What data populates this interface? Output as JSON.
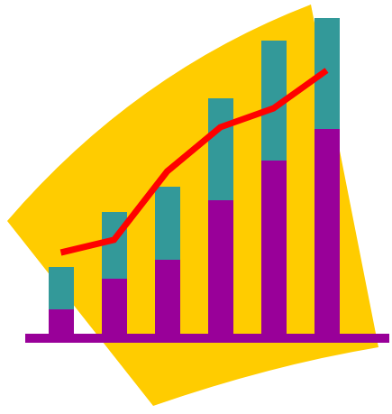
{
  "chart_data": {
    "type": "bar",
    "categories": [
      null,
      null,
      null,
      null,
      null,
      null
    ],
    "series": [
      {
        "type": "bar",
        "color": "#990099",
        "values": [
          32,
          66,
          87,
          153,
          197,
          232
        ]
      },
      {
        "type": "bar",
        "color": "#339999",
        "values": [
          47,
          74,
          81,
          113,
          133,
          123
        ]
      },
      {
        "type": "line",
        "color": "#ff0000",
        "values": [
          95,
          109,
          185,
          234,
          255,
          297
        ]
      }
    ],
    "ylim": [
      0,
      360
    ],
    "stacked": true,
    "tick_labels": false,
    "grid": false
  }
}
